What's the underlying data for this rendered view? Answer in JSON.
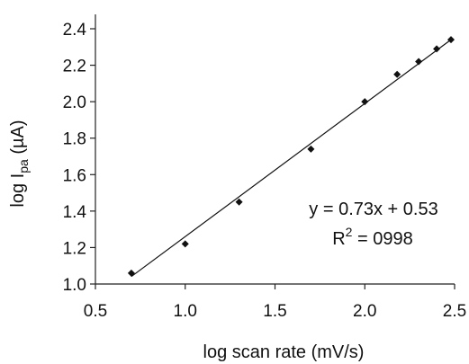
{
  "chart_data": {
    "type": "scatter",
    "xlabel": "log scan rate (mV/s)",
    "ylabel_main": "log I",
    "ylabel_sub": "pa",
    "ylabel_unit": " (µA)",
    "xlim": [
      0.5,
      2.5
    ],
    "ylim": [
      1.0,
      2.4
    ],
    "xticks": [
      0.5,
      1.0,
      1.5,
      2.0,
      2.5
    ],
    "yticks": [
      1.0,
      1.2,
      1.4,
      1.6,
      1.8,
      2.0,
      2.2,
      2.4
    ],
    "xtick_labels": [
      "0.5",
      "1.0",
      "1.5",
      "2.0",
      "2.5"
    ],
    "ytick_labels": [
      "1.0",
      "1.2",
      "1.4",
      "1.6",
      "1.8",
      "2.0",
      "2.2",
      "2.4"
    ],
    "grid": false,
    "marker": "diamond",
    "series": [
      {
        "points": [
          {
            "x": 0.7,
            "y": 1.06
          },
          {
            "x": 1.0,
            "y": 1.22
          },
          {
            "x": 1.3,
            "y": 1.45
          },
          {
            "x": 1.7,
            "y": 1.74
          },
          {
            "x": 2.0,
            "y": 2.0
          },
          {
            "x": 2.18,
            "y": 2.15
          },
          {
            "x": 2.3,
            "y": 2.22
          },
          {
            "x": 2.4,
            "y": 2.29
          },
          {
            "x": 2.48,
            "y": 2.34
          }
        ]
      }
    ],
    "trendline": {
      "slope": 0.73,
      "intercept": 0.53,
      "x_range": [
        0.7,
        2.48
      ]
    },
    "annotation": {
      "equation": "y = 0.73x + 0.53",
      "r2_base": "R",
      "r2_sup": "2",
      "r2_rest": " = 0998"
    }
  }
}
